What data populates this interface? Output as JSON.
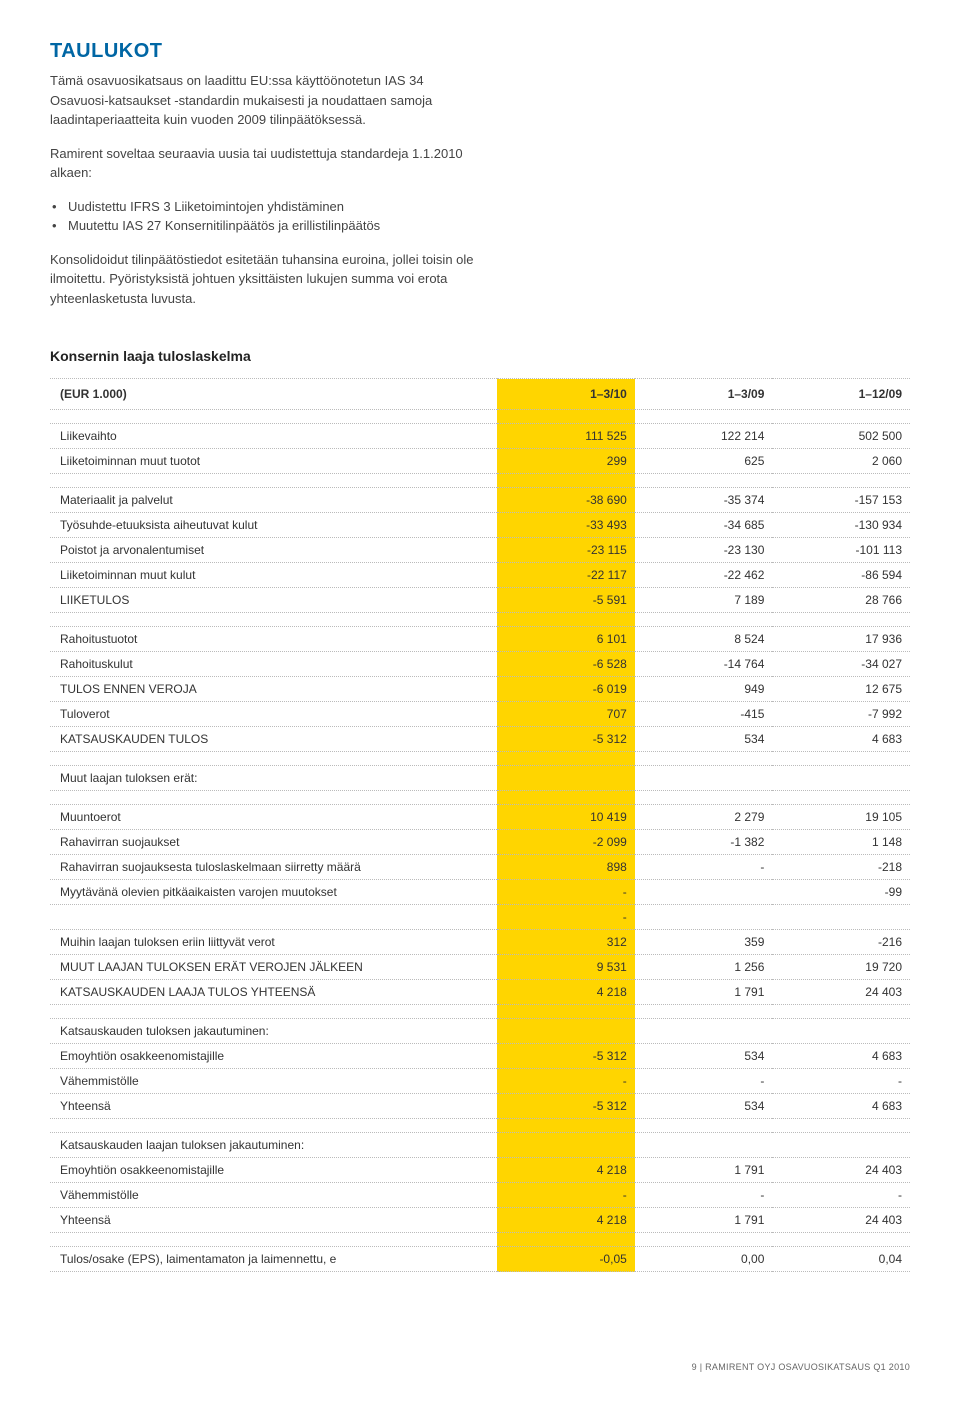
{
  "title": "TAULUKOT",
  "intro": {
    "p1": "Tämä osavuosikatsaus on laadittu EU:ssa käyttöönotetun IAS 34 Osavuosi-katsaukset -standardin mukaisesti ja noudattaen samoja laadintaperiaatteita kuin vuoden 2009 tilinpäätöksessä.",
    "p2": "Ramirent soveltaa seuraavia uusia tai uudistettuja standardeja 1.1.2010 alkaen:",
    "bullets": [
      "Uudistettu IFRS 3 Liiketoimintojen yhdistäminen",
      "Muutettu IAS 27 Konsernitilinpäätös ja erillistilinpäätös"
    ],
    "p3": "Konsolidoidut tilinpäätöstiedot esitetään tuhansina euroina, jollei toisin ole ilmoitettu. Pyöristyksistä johtuen yksittäisten lukujen summa voi erota yhteenlasketusta luvusta."
  },
  "section_heading": "Konsernin laaja tuloslaskelma",
  "table": {
    "header_label": "(EUR 1.000)",
    "columns": [
      "1–3/10",
      "1–3/09",
      "1–12/09"
    ],
    "highlight_column_index": 0,
    "highlight_color": "#ffd500",
    "row_border_color": "#bbbbbb",
    "rows": [
      {
        "type": "spacer"
      },
      {
        "label": "Liikevaihto",
        "v": [
          "111 525",
          "122 214",
          "502 500"
        ]
      },
      {
        "label": "Liiketoiminnan muut tuotot",
        "v": [
          "299",
          "625",
          "2 060"
        ]
      },
      {
        "type": "spacer"
      },
      {
        "label": "Materiaalit ja palvelut",
        "v": [
          "-38 690",
          "-35 374",
          "-157 153"
        ]
      },
      {
        "label": "Työsuhde-etuuksista aiheutuvat kulut",
        "v": [
          "-33 493",
          "-34 685",
          "-130 934"
        ]
      },
      {
        "label": "Poistot ja arvonalentumiset",
        "v": [
          "-23 115",
          "-23 130",
          "-101 113"
        ]
      },
      {
        "label": "Liiketoiminnan muut kulut",
        "v": [
          "-22 117",
          "-22 462",
          "-86 594"
        ]
      },
      {
        "label": "LIIKETULOS",
        "v": [
          "-5 591",
          "7 189",
          "28 766"
        ]
      },
      {
        "type": "spacer"
      },
      {
        "label": "Rahoitustuotot",
        "v": [
          "6 101",
          "8 524",
          "17 936"
        ]
      },
      {
        "label": "Rahoituskulut",
        "v": [
          "-6 528",
          "-14 764",
          "-34 027"
        ]
      },
      {
        "label": "TULOS ENNEN VEROJA",
        "v": [
          "-6 019",
          "949",
          "12 675"
        ]
      },
      {
        "label": "Tuloverot",
        "v": [
          "707",
          "-415",
          "-7 992"
        ]
      },
      {
        "label": "KATSAUSKAUDEN TULOS",
        "v": [
          "-5 312",
          "534",
          "4 683"
        ]
      },
      {
        "type": "spacer"
      },
      {
        "label": "Muut laajan tuloksen erät:",
        "v": [
          "",
          "",
          ""
        ]
      },
      {
        "type": "spacer"
      },
      {
        "label": "Muuntoerot",
        "v": [
          "10 419",
          "2 279",
          "19 105"
        ]
      },
      {
        "label": "Rahavirran suojaukset",
        "v": [
          "-2 099",
          "-1 382",
          "1 148"
        ]
      },
      {
        "label": "Rahavirran suojauksesta tuloslaskelmaan siirretty määrä",
        "v": [
          "898",
          "-",
          "-218"
        ]
      },
      {
        "label": "Myytävänä olevien pitkäaikaisten varojen muutokset",
        "v": [
          "-",
          "",
          "-99"
        ]
      },
      {
        "label": "",
        "v": [
          "-",
          "",
          ""
        ]
      },
      {
        "label": "Muihin laajan tuloksen eriin liittyvät verot",
        "v": [
          "312",
          "359",
          "-216"
        ]
      },
      {
        "label": "MUUT LAAJAN TULOKSEN ERÄT VEROJEN JÄLKEEN",
        "v": [
          "9 531",
          "1 256",
          "19 720"
        ]
      },
      {
        "label": "KATSAUSKAUDEN LAAJA TULOS YHTEENSÄ",
        "v": [
          "4 218",
          "1 791",
          "24 403"
        ]
      },
      {
        "type": "spacer"
      },
      {
        "label": "Katsauskauden tuloksen jakautuminen:",
        "v": [
          "",
          "",
          ""
        ]
      },
      {
        "label": "Emoyhtiön osakkeenomistajille",
        "v": [
          "-5 312",
          "534",
          "4 683"
        ]
      },
      {
        "label": "Vähemmistölle",
        "v": [
          "-",
          "-",
          "-"
        ]
      },
      {
        "label": "Yhteensä",
        "v": [
          "-5 312",
          "534",
          "4 683"
        ]
      },
      {
        "type": "spacer"
      },
      {
        "label": "Katsauskauden laajan tuloksen jakautuminen:",
        "v": [
          "",
          "",
          ""
        ]
      },
      {
        "label": "Emoyhtiön osakkeenomistajille",
        "v": [
          "4 218",
          "1 791",
          "24 403"
        ]
      },
      {
        "label": "Vähemmistölle",
        "v": [
          "-",
          "-",
          "-"
        ]
      },
      {
        "label": "Yhteensä",
        "v": [
          "4 218",
          "1 791",
          "24 403"
        ]
      },
      {
        "type": "spacer"
      },
      {
        "label": "Tulos/osake (EPS), laimentamaton ja laimennettu, e",
        "v": [
          "-0,05",
          "0,00",
          "0,04"
        ]
      }
    ]
  },
  "footer": "9 | RAMIRENT OYJ OSAVUOSIKATSAUS Q1 2010"
}
